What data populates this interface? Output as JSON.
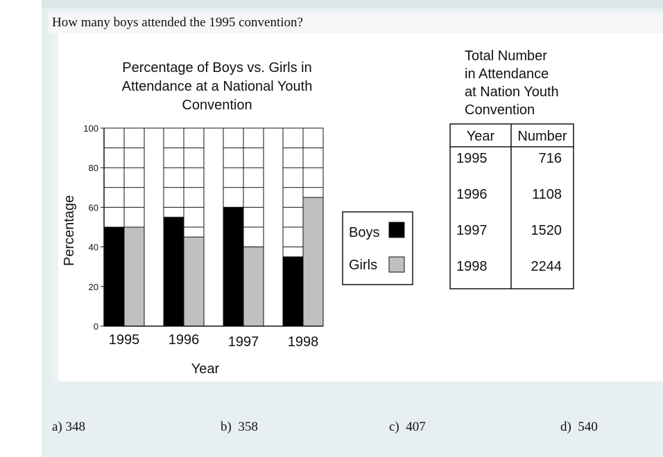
{
  "question": "How many boys attended the 1995 convention?",
  "chart_data": [
    {
      "type": "bar",
      "title": "Percentage of Boys vs. Girls in Attendance at a National Youth Convention",
      "title_lines": [
        "Percentage of Boys vs. Girls in",
        "Attendance at a National Youth",
        "Convention"
      ],
      "xlabel": "Year",
      "ylabel": "Percentage",
      "categories": [
        "1995",
        "1996",
        "1997",
        "1998"
      ],
      "ylim": [
        0,
        100
      ],
      "yticks": [
        0,
        20,
        40,
        60,
        80,
        100
      ],
      "grid": true,
      "legend": "right",
      "series": [
        {
          "name": "Boys",
          "color": "#000000",
          "values": [
            50,
            55,
            60,
            35
          ]
        },
        {
          "name": "Girls",
          "color": "#c0c0c0",
          "values": [
            50,
            45,
            40,
            65
          ]
        }
      ]
    },
    {
      "type": "table",
      "title": "Total Number in Attendance at Nation Youth Convention",
      "title_lines": [
        "Total Number",
        "in Attendance",
        "at Nation Youth",
        "Convention"
      ],
      "columns": [
        "Year",
        "Number"
      ],
      "rows": [
        [
          "1995",
          "716"
        ],
        [
          "1996",
          "1108"
        ],
        [
          "1997",
          "1520"
        ],
        [
          "1998",
          "2244"
        ]
      ]
    }
  ],
  "answers": [
    {
      "letter": "a)",
      "value": "348"
    },
    {
      "letter": "b)",
      "value": "358"
    },
    {
      "letter": "c)",
      "value": "407"
    },
    {
      "letter": "d)",
      "value": "540"
    }
  ]
}
